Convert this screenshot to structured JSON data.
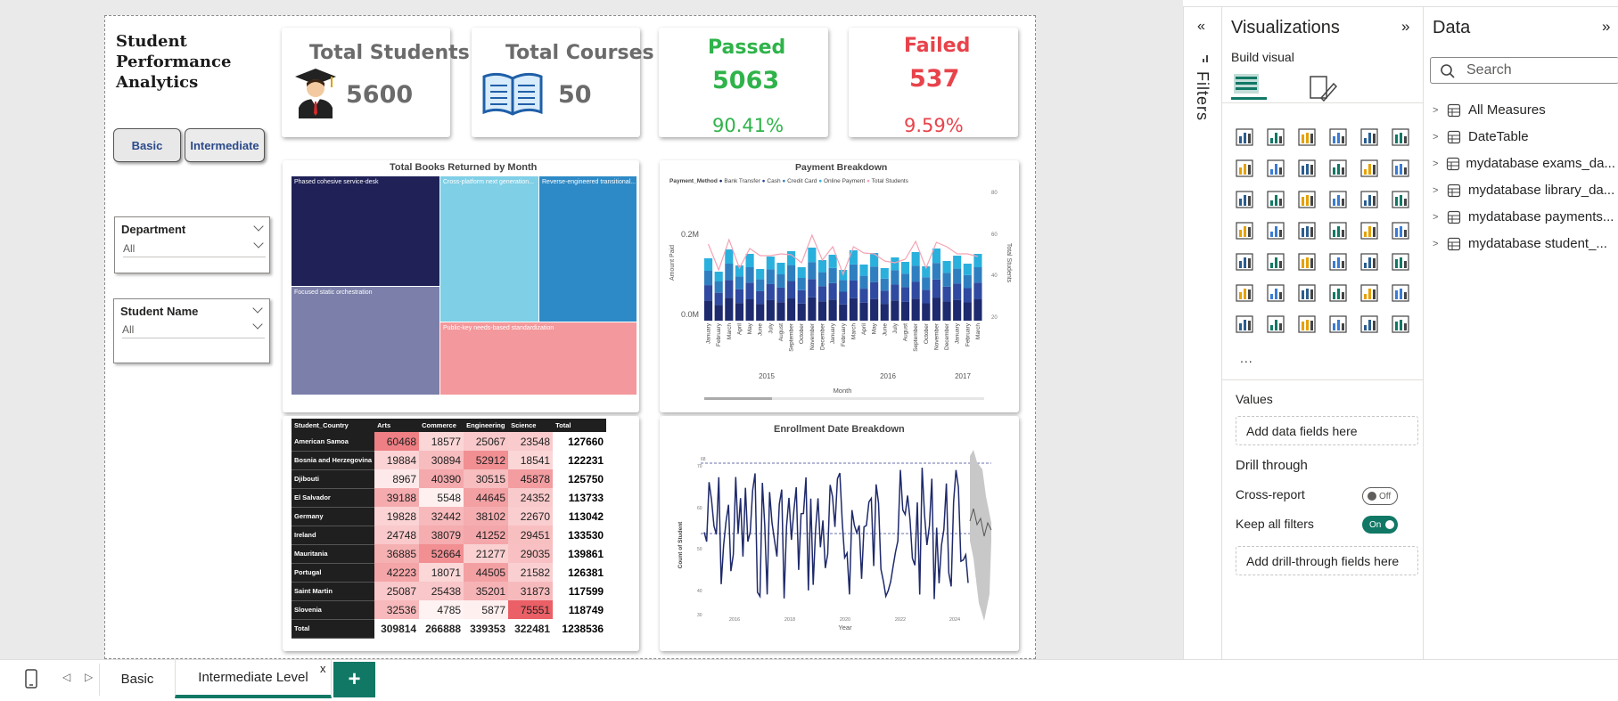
{
  "report": {
    "title_lines": [
      "Student",
      "Performance",
      "Analytics"
    ],
    "buttons": {
      "basic": "Basic",
      "intermediate": "Intermediate"
    },
    "slicers": [
      {
        "title": "Department",
        "value": "All"
      },
      {
        "title": "Student Name",
        "value": "All"
      }
    ],
    "kpis": {
      "total_students": {
        "label": "Total Students",
        "value": "5600"
      },
      "total_courses": {
        "label": "Total Courses",
        "value": "50"
      },
      "passed": {
        "label": "Passed",
        "value": "5063",
        "pct": "90.41%",
        "color": "#2fb34a"
      },
      "failed": {
        "label": "Failed",
        "value": "537",
        "pct": "9.59%",
        "color": "#e8434b"
      }
    },
    "treemap": {
      "title": "Total Books Returned by Month",
      "tiles": [
        {
          "label": "Phased cohesive service-desk",
          "color": "#1f2157"
        },
        {
          "label": "Focused static orchestration",
          "color": "#7b7fa9"
        },
        {
          "label": "Cross-platform next generation...",
          "color": "#7fcfe6"
        },
        {
          "label": "Reverse-engineered transitional...",
          "color": "#2e8ac6"
        },
        {
          "label": "Public-key needs-based standardization",
          "color": "#f3989c"
        }
      ]
    },
    "payment": {
      "title": "Payment Breakdown",
      "legend_title": "Payment_Method",
      "legend": [
        {
          "name": "Bank Transfer",
          "color": "#1e2a6e"
        },
        {
          "name": "Cash",
          "color": "#2f4aa0"
        },
        {
          "name": "Credit Card",
          "color": "#2f7fc0"
        },
        {
          "name": "Online Payment",
          "color": "#2ab0dd"
        },
        {
          "name": "Total Students",
          "color": "#f4a3b4"
        }
      ],
      "y_left_label": "Amount Paid",
      "y_right_label": "Total Students",
      "y_left_ticks": [
        "0.2M",
        "0.0M"
      ],
      "y_right_ticks": [
        "80",
        "60",
        "40",
        "20"
      ],
      "x_label": "Month",
      "years": [
        "2015",
        "2016",
        "2017"
      ],
      "months": [
        "January",
        "February",
        "March",
        "April",
        "May",
        "June",
        "July",
        "August",
        "September",
        "October",
        "November",
        "December",
        "January",
        "February",
        "March",
        "April",
        "May",
        "June",
        "July",
        "August",
        "September",
        "October",
        "November",
        "December",
        "January",
        "February",
        "March"
      ]
    },
    "matrix": {
      "headers": [
        "Student_Country",
        "Arts",
        "Commerce",
        "Engineering",
        "Science",
        "Total"
      ],
      "rows": [
        {
          "country": "American Samoa",
          "values": [
            "60468",
            "18577",
            "25067",
            "23548"
          ],
          "total": "127660"
        },
        {
          "country": "Bosnia and Herzegovina",
          "values": [
            "19884",
            "30894",
            "52912",
            "18541"
          ],
          "total": "122231"
        },
        {
          "country": "Djibouti",
          "values": [
            "8967",
            "40390",
            "30515",
            "45878"
          ],
          "total": "125750"
        },
        {
          "country": "El Salvador",
          "values": [
            "39188",
            "5548",
            "44645",
            "24352"
          ],
          "total": "113733"
        },
        {
          "country": "Germany",
          "values": [
            "19828",
            "32442",
            "38102",
            "22670"
          ],
          "total": "113042"
        },
        {
          "country": "Ireland",
          "values": [
            "24748",
            "38079",
            "41252",
            "29451"
          ],
          "total": "133530"
        },
        {
          "country": "Mauritania",
          "values": [
            "36885",
            "52664",
            "21277",
            "29035"
          ],
          "total": "139861"
        },
        {
          "country": "Portugal",
          "values": [
            "42223",
            "18071",
            "44505",
            "21582"
          ],
          "total": "126381"
        },
        {
          "country": "Saint Martin",
          "values": [
            "25087",
            "25438",
            "35201",
            "31873"
          ],
          "total": "117599"
        },
        {
          "country": "Slovenia",
          "values": [
            "32536",
            "4785",
            "5877",
            "75551"
          ],
          "total": "118749"
        }
      ],
      "total_row": {
        "label": "Total",
        "values": [
          "309814",
          "266888",
          "339353",
          "322481"
        ],
        "total": "1238536"
      }
    },
    "enrollment": {
      "title": "Enrollment Date Breakdown",
      "y_label": "Count of Student",
      "x_label": "Year",
      "y_ticks": [
        "70",
        "60",
        "50",
        "40",
        "30"
      ],
      "x_ticks": [
        "2016",
        "2018",
        "2020",
        "2022",
        "2024"
      ],
      "ref_label": "68",
      "line_color": "#1f2a6b"
    }
  },
  "filters_pane": {
    "label": "Filters"
  },
  "viz_pane": {
    "title": "Visualizations",
    "build_visual": "Build visual",
    "more": "...",
    "values_label": "Values",
    "values_placeholder": "Add data fields here",
    "drill_through": "Drill through",
    "cross_report": "Cross-report",
    "cross_report_state": "Off",
    "keep_filters": "Keep all filters",
    "keep_filters_state": "On",
    "drill_placeholder": "Add drill-through fields here"
  },
  "data_pane": {
    "title": "Data",
    "search_placeholder": "Search",
    "items": [
      "All Measures",
      "DateTable",
      "mydatabase exams_da...",
      "mydatabase library_da...",
      "mydatabase payments...",
      "mydatabase student_..."
    ]
  },
  "tabs": {
    "pages": [
      "Basic",
      "Intermediate Level"
    ],
    "close": "x",
    "add": "+"
  }
}
